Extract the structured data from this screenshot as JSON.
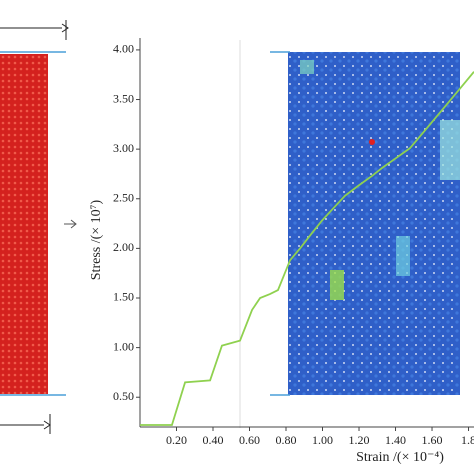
{
  "chart_data": {
    "type": "line",
    "x_label": "Strain /(× 10⁻⁴)",
    "y_label": "Stress /(× 10⁷)",
    "x": [
      0,
      0.175,
      0.247,
      0.384,
      0.449,
      0.548,
      0.614,
      0.658,
      0.712,
      0.756,
      0.822,
      0.877,
      0.932,
      0.997,
      1.052,
      1.123,
      1.195,
      1.271,
      1.326,
      1.403,
      1.479,
      1.562,
      1.644,
      1.726,
      1.83
    ],
    "series": [
      {
        "color": "#8fd14f",
        "values": [
          0.22,
          0.22,
          0.65,
          0.67,
          1.02,
          1.07,
          1.38,
          1.5,
          1.54,
          1.58,
          1.88,
          2.0,
          2.13,
          2.28,
          2.39,
          2.53,
          2.63,
          2.73,
          2.81,
          2.91,
          3.01,
          3.19,
          3.37,
          3.55,
          3.78
        ]
      }
    ],
    "xlim": [
      0,
      1.83
    ],
    "ylim": [
      0.2,
      4.12
    ],
    "xticks": [
      {
        "value": 0.2,
        "label": "0.20"
      },
      {
        "value": 0.4,
        "label": "0.40"
      },
      {
        "value": 0.6,
        "label": "0.60"
      },
      {
        "value": 0.8,
        "label": "0.80"
      },
      {
        "value": 1.0,
        "label": "1.00"
      },
      {
        "value": 1.2,
        "label": "1.20"
      },
      {
        "value": 1.4,
        "label": "1.40"
      },
      {
        "value": 1.6,
        "label": "1.60"
      },
      {
        "value": 1.8,
        "label": "1.8"
      }
    ],
    "yticks": [
      {
        "value": 0.5,
        "label": "0.50"
      },
      {
        "value": 1.0,
        "label": "1.00"
      },
      {
        "value": 1.5,
        "label": "1.50"
      },
      {
        "value": 2.0,
        "label": "2.00"
      },
      {
        "value": 2.5,
        "label": "2.50"
      },
      {
        "value": 3.0,
        "label": "3.00"
      },
      {
        "value": 3.5,
        "label": "3.50"
      },
      {
        "value": 4.0,
        "label": "4.00"
      }
    ]
  }
}
